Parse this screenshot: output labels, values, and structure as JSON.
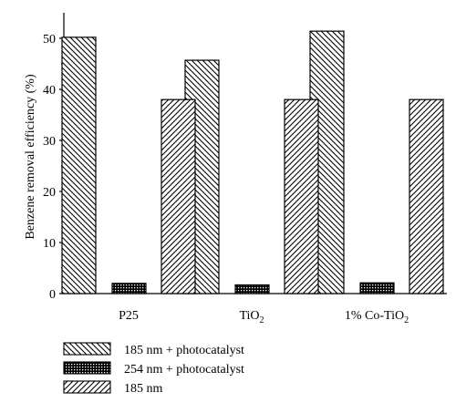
{
  "chart_data": {
    "type": "bar",
    "ylabel": "Benzene removal efficiency (%)",
    "xlabel": "",
    "ylim": [
      0,
      55
    ],
    "yticks": [
      0,
      10,
      20,
      30,
      40,
      50
    ],
    "categories": [
      {
        "label": "P25",
        "sub": ""
      },
      {
        "label": "TiO",
        "sub": "2"
      },
      {
        "label": "1% Co-TiO",
        "sub": "2"
      }
    ],
    "series": [
      {
        "name": "185 nm + photocatalyst",
        "pattern": "diag-back",
        "values": [
          50.2,
          45.7,
          51.4
        ]
      },
      {
        "name": "254 nm + photocatalyst",
        "pattern": "checker",
        "values": [
          2.0,
          1.7,
          2.1
        ]
      },
      {
        "name": "185 nm",
        "pattern": "diag-fwd",
        "values": [
          38.0,
          38.0,
          38.0
        ]
      }
    ],
    "grid": false,
    "legend_position": "bottom-left",
    "colors": {
      "ink": "#000000",
      "background": "#ffffff"
    }
  }
}
